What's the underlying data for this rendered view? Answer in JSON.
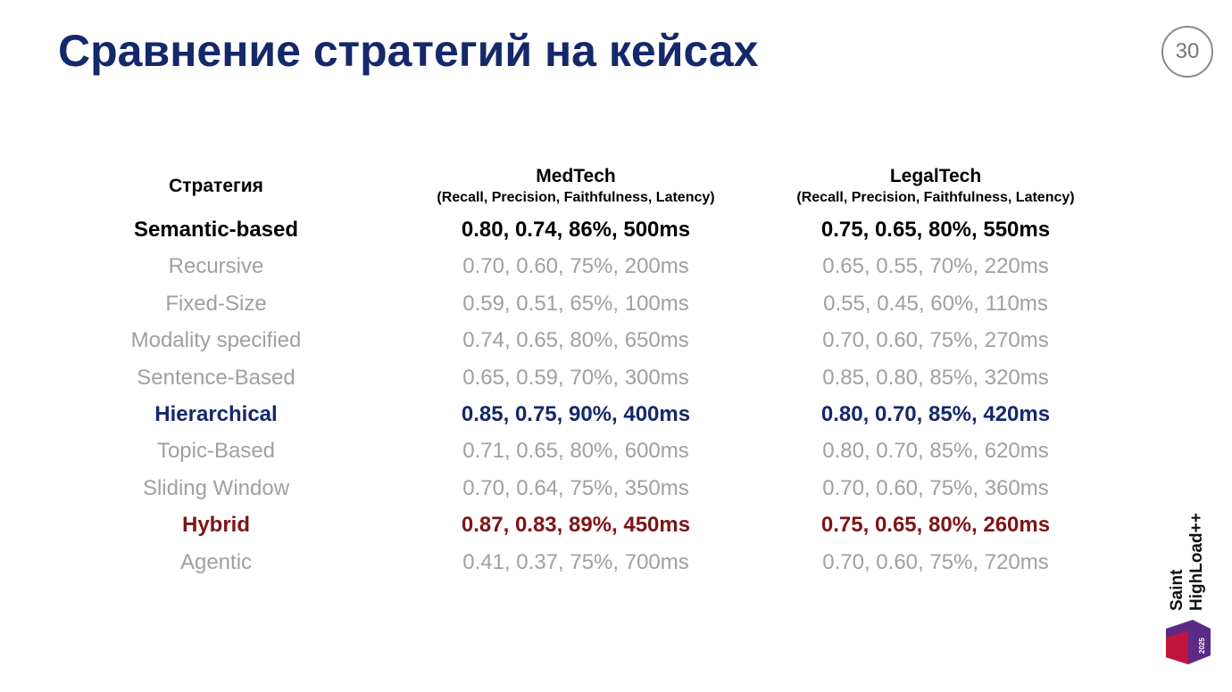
{
  "header": {
    "title": "Сравнение стратегий на кейсах",
    "page": "30"
  },
  "table": {
    "columns": [
      "Стратегия",
      "MedTech",
      "LegalTech"
    ],
    "column_notes": [
      "(Recall, Precision, Faithfulness, Latency)",
      "(Recall, Precision, Faithfulness, Latency)"
    ],
    "rows": [
      [
        "Semantic-based",
        "0.80, 0.74, 86%, 500ms",
        "0.75, 0.65, 80%, 550ms"
      ],
      [
        "Recursive",
        "0.70, 0.60, 75%, 200ms",
        "0.65, 0.55, 70%, 220ms"
      ],
      [
        "Fixed-Size",
        "0.59, 0.51, 65%, 100ms",
        "0.55, 0.45, 60%, 110ms"
      ],
      [
        "Modality specified",
        "0.74, 0.65, 80%, 650ms",
        "0.70, 0.60, 75%, 270ms"
      ],
      [
        "Sentence-Based",
        "0.65, 0.59, 70%, 300ms",
        "0.85, 0.80, 85%, 320ms"
      ],
      [
        "Hierarchical",
        "0.85, 0.75, 90%, 400ms",
        "0.80, 0.70, 85%, 420ms"
      ],
      [
        "Topic-Based",
        "0.71, 0.65, 80%, 600ms",
        "0.80, 0.70, 85%, 620ms"
      ],
      [
        "Sliding Window",
        "0.70, 0.64, 75%, 350ms",
        "0.70, 0.60, 75%, 360ms"
      ],
      [
        "Hybrid",
        "0.87, 0.83, 89%, 450ms",
        "0.75, 0.65, 80%, 260ms"
      ],
      [
        "Agentic",
        "0.41, 0.37, 75%, 700ms",
        "0.70, 0.60, 75%, 720ms"
      ]
    ]
  },
  "logo": {
    "name": [
      "Saint",
      "HighLoad++"
    ],
    "year": "2025"
  }
}
